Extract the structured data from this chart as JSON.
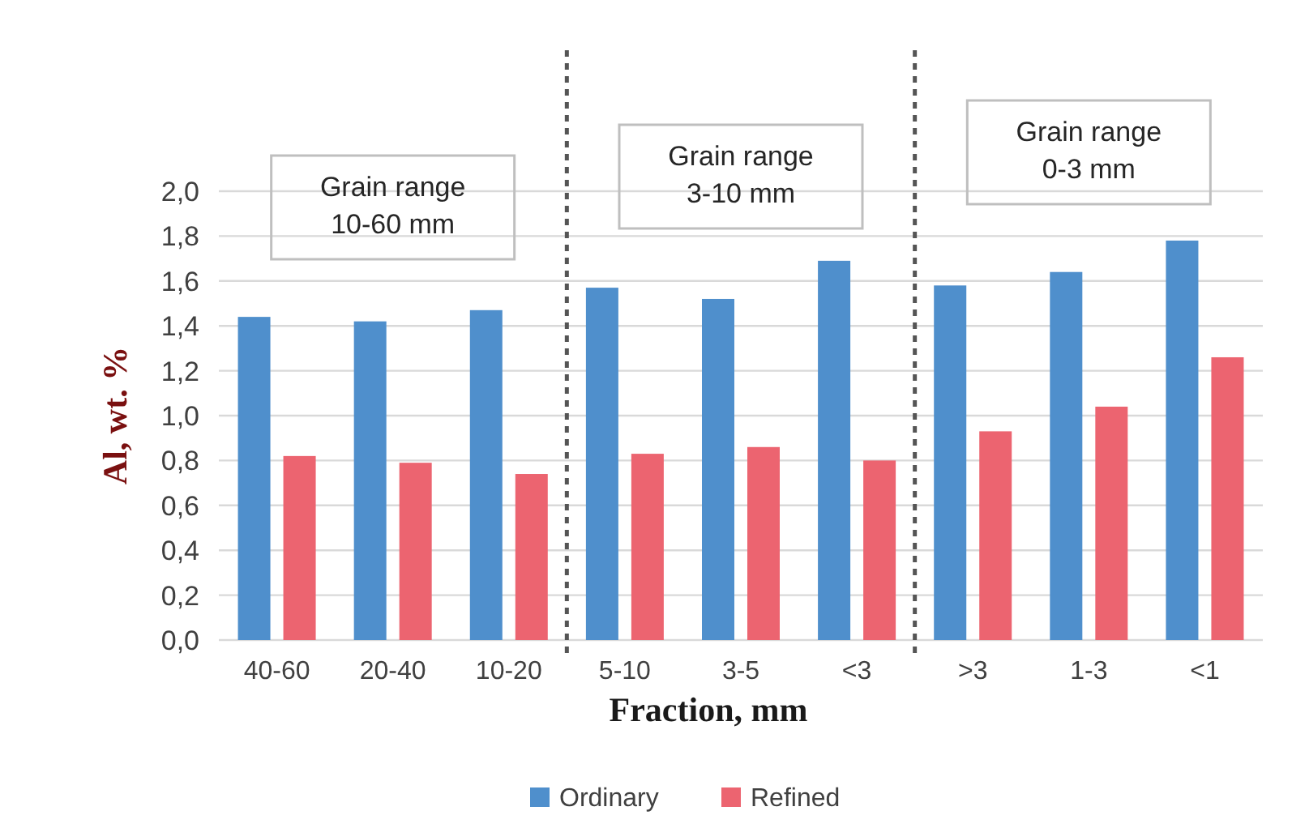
{
  "chart_data": {
    "type": "bar",
    "xlabel": "Fraction, mm",
    "ylabel": "Al, wt. %",
    "categories": [
      "40-60",
      "20-40",
      "10-20",
      "5-10",
      "3-5",
      "<3",
      ">3",
      "1-3",
      "<1"
    ],
    "series": [
      {
        "name": "Ordinary",
        "color": "#4f8fcc",
        "values": [
          1.44,
          1.42,
          1.47,
          1.57,
          1.52,
          1.69,
          1.58,
          1.64,
          1.78
        ]
      },
      {
        "name": "Refined",
        "color": "#ec6470",
        "values": [
          0.82,
          0.79,
          0.74,
          0.83,
          0.86,
          0.8,
          0.93,
          1.04,
          1.26
        ]
      }
    ],
    "ylim": [
      0,
      2
    ],
    "yticks": [
      {
        "value": 0,
        "label": "0,0"
      },
      {
        "value": 0.2,
        "label": "0,2"
      },
      {
        "value": 0.4,
        "label": "0,4"
      },
      {
        "value": 0.6,
        "label": "0,6"
      },
      {
        "value": 0.8,
        "label": "0,8"
      },
      {
        "value": 1,
        "label": "1,0"
      },
      {
        "value": 1.2,
        "label": "1,2"
      },
      {
        "value": 1.4,
        "label": "1,4"
      },
      {
        "value": 1.6,
        "label": "1,6"
      },
      {
        "value": 1.8,
        "label": "1,8"
      },
      {
        "value": 2,
        "label": "2,0"
      }
    ],
    "grid": "y",
    "legend": "bottom",
    "annotations": [
      "Grain range\n10-60 mm",
      "Grain range\n3-10 mm",
      "Grain range\n0-3 mm"
    ]
  }
}
